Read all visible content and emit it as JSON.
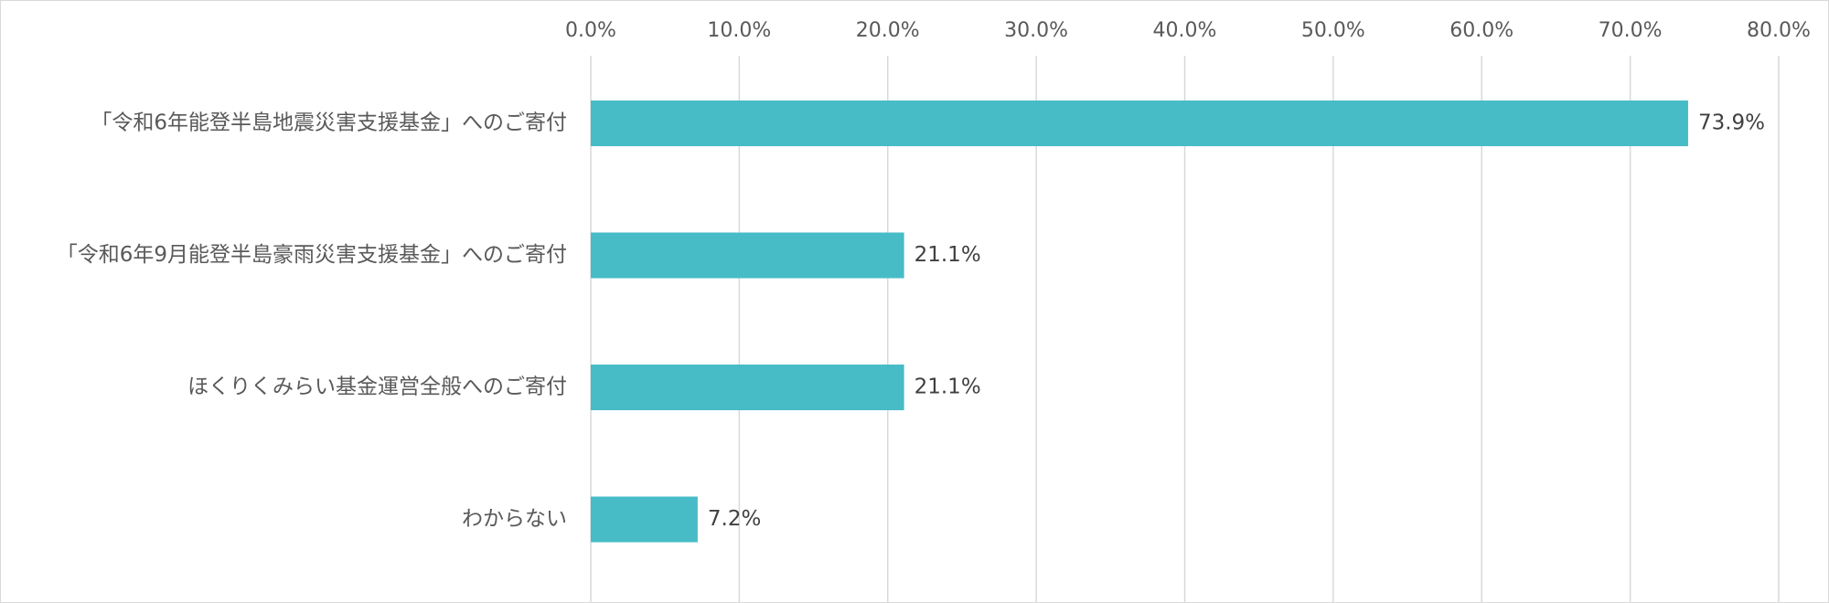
{
  "chart_data": {
    "type": "bar",
    "orientation": "horizontal",
    "categories": [
      "「令和6年能登半島地震災害支援基金」へのご寄付",
      "「令和6年9月能登半島豪雨災害支援基金」へのご寄付",
      "ほくりくみらい基金運営全般へのご寄付",
      "わからない"
    ],
    "values": [
      73.9,
      21.1,
      21.1,
      7.2
    ],
    "value_labels": [
      "73.9%",
      "21.1%",
      "21.1%",
      "7.2%"
    ],
    "xlim": [
      0,
      80
    ],
    "x_ticks": [
      0,
      10,
      20,
      30,
      40,
      50,
      60,
      70,
      80
    ],
    "x_tick_labels": [
      "0.0%",
      "10.0%",
      "20.0%",
      "30.0%",
      "40.0%",
      "50.0%",
      "60.0%",
      "70.0%",
      "80.0%"
    ],
    "x_axis_position": "top",
    "grid": true,
    "bar_color": "#47bcc7",
    "title": "",
    "xlabel": "",
    "ylabel": ""
  }
}
